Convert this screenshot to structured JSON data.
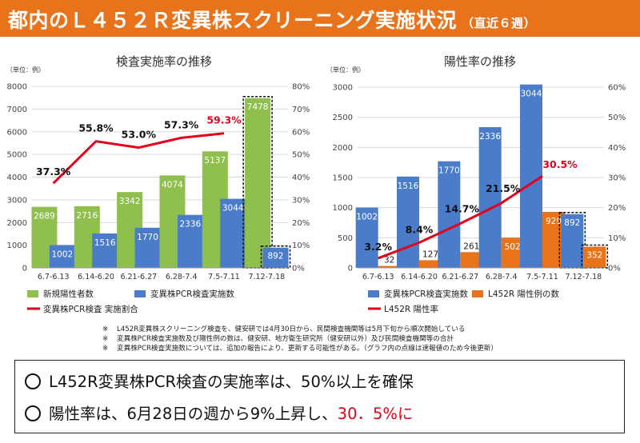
{
  "header": {
    "title": "都内のＬ４５２Ｒ変異株スクリーニング実施状況",
    "subtitle": "（直近６週）"
  },
  "chart_data": [
    {
      "type": "bar",
      "title": "検査実施率の推移",
      "unit_label": "（単位：例）",
      "categories": [
        "6.7-6.13",
        "6.14-6.20",
        "6.21-6.27",
        "6.28-7.4",
        "7.5-7.11",
        "7.12-7.18"
      ],
      "ylim": [
        0,
        8000
      ],
      "y2lim": [
        0,
        80
      ],
      "yticks": [
        "0",
        "1000",
        "2000",
        "3000",
        "4000",
        "5000",
        "6000",
        "7000",
        "8000"
      ],
      "y2ticks": [
        "0%",
        "10%",
        "20%",
        "30%",
        "40%",
        "50%",
        "60%",
        "70%",
        "80%"
      ],
      "series": [
        {
          "name": "新規陽性者数",
          "kind": "bar",
          "color": "#8fbf4d",
          "values": [
            2689,
            2716,
            3342,
            4074,
            5137,
            7478
          ]
        },
        {
          "name": "変異株PCR検査実施数",
          "kind": "bar",
          "color": "#4a7cc9",
          "values": [
            1002,
            1516,
            1770,
            2336,
            3044,
            892
          ]
        },
        {
          "name": "変異株PCR検査 実施割合",
          "kind": "line",
          "color": "#e3001b",
          "values": [
            37.3,
            55.8,
            53.0,
            57.3,
            59.3,
            null
          ]
        }
      ],
      "line_labels": [
        "37.3%",
        "55.8%",
        "53.0%",
        "57.3%",
        "59.3%"
      ],
      "preliminary": [
        "7478",
        "892"
      ],
      "legend_position": "bottom-left"
    },
    {
      "type": "bar",
      "title": "陽性率の推移",
      "unit_label": "（単位：例）",
      "categories": [
        "6.7-6.13",
        "6.14-6.20",
        "6.21-6.27",
        "6.28-7.4",
        "7.5-7.11",
        "7.12-7.18"
      ],
      "ylim": [
        0,
        3000
      ],
      "y2lim": [
        0,
        60
      ],
      "yticks": [
        "0",
        "500",
        "1000",
        "1500",
        "2000",
        "2500",
        "3000"
      ],
      "y2ticks": [
        "0%",
        "10%",
        "20%",
        "30%",
        "40%",
        "50%",
        "60%"
      ],
      "series": [
        {
          "name": "変異株PCR検査実施数",
          "kind": "bar",
          "color": "#4a7cc9",
          "values": [
            1002,
            1516,
            1770,
            2336,
            3044,
            892
          ]
        },
        {
          "name": "L452R 陽性例の数",
          "kind": "bar",
          "color": "#e8731a",
          "values": [
            32,
            127,
            261,
            502,
            929,
            352
          ]
        },
        {
          "name": "L452R 陽性率",
          "kind": "line",
          "color": "#e3001b",
          "values": [
            3.2,
            8.4,
            14.7,
            21.5,
            30.5,
            null
          ]
        }
      ],
      "line_labels": [
        "3.2%",
        "8.4%",
        "14.7%",
        "21.5%",
        "30.5%"
      ],
      "preliminary": [
        "892",
        "352"
      ],
      "legend_position": "bottom-left"
    }
  ],
  "notes": [
    {
      "mark": "※",
      "text": "L452R変異株スクリーニング検査を、健安研では4月30日から、民間検査機関等は5月下旬から順次開始している"
    },
    {
      "mark": "※",
      "text": "変異株PCR検査実施数及び陽性例の数は、健安研、地方衛生研究所（健安研以外）及び民間検査機関等の合計"
    },
    {
      "mark": "※",
      "text": "変異株PCR検査実施数については、追加の報告により、更新する可能性がある。（グラフ内の点線は速報値のため今後更新）"
    }
  ],
  "summary": {
    "line1": "L452R変異株PCR検査の実施率は、50%以上を確保",
    "line2_prefix": "陽性率は、6月28日の週から9%上昇し、",
    "line2_highlight": "30．5%に"
  }
}
